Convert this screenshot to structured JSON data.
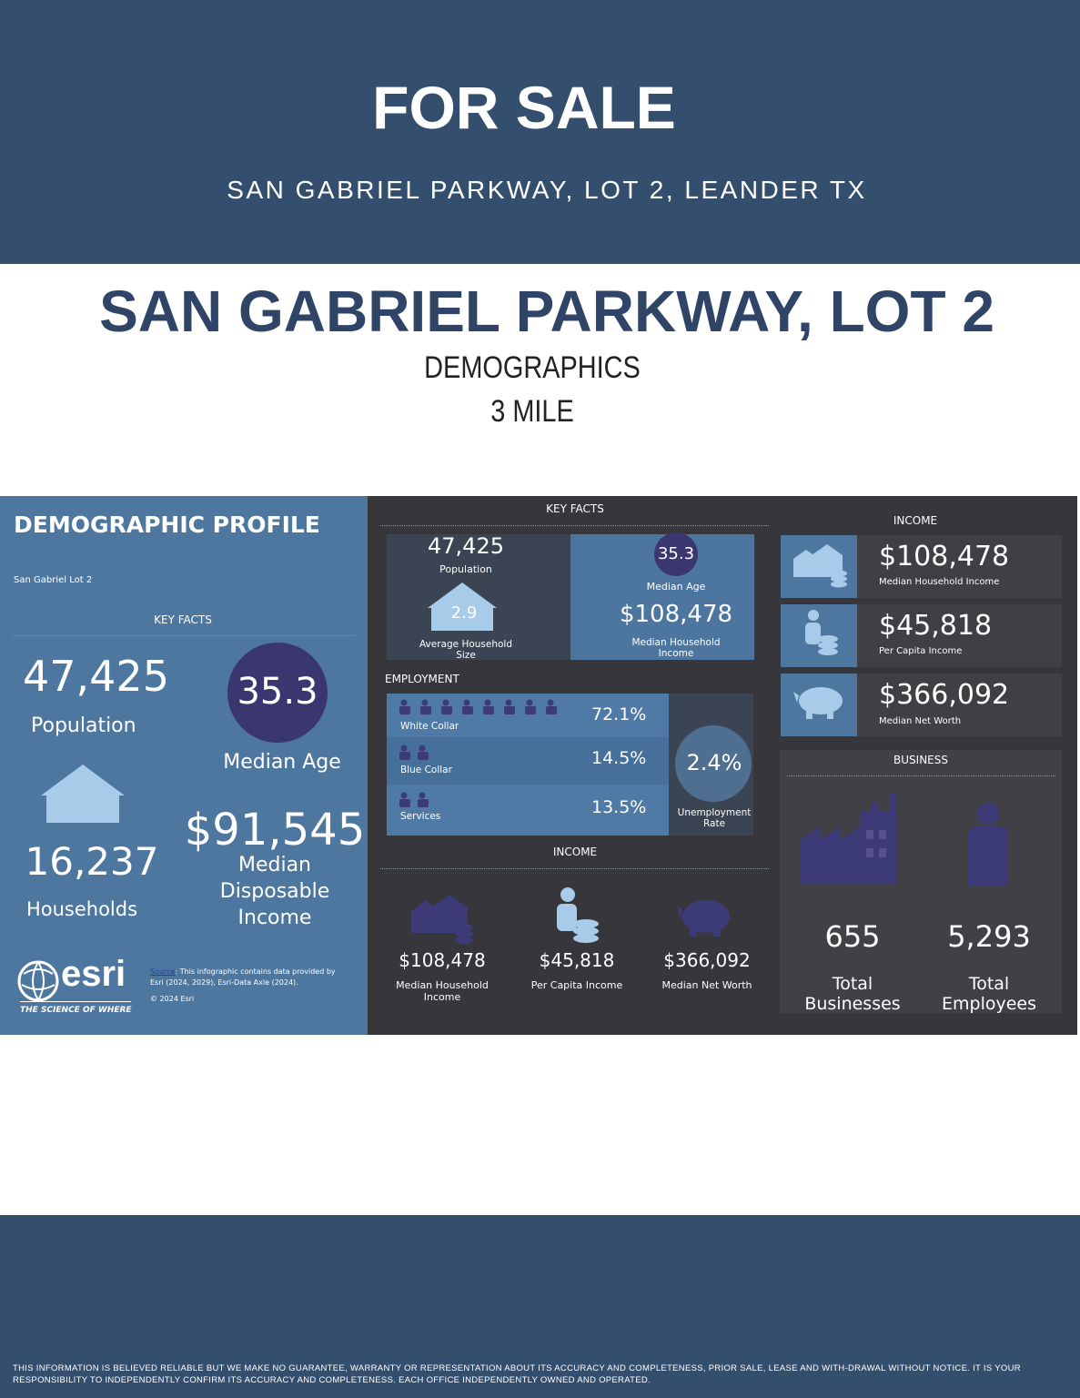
{
  "header": {
    "title": "FOR SALE",
    "address": "SAN GABRIEL PARKWAY, LOT 2, LEANDER TX"
  },
  "heading": {
    "title": "SAN GABRIEL PARKWAY, LOT 2",
    "subtitle": "DEMOGRAPHICS",
    "radius": "3 MILE"
  },
  "profile": {
    "title": "DEMOGRAPHIC PROFILE",
    "location": "San Gabriel Lot 2",
    "section": "KEY FACTS",
    "population": {
      "value": "47,425",
      "label": "Population"
    },
    "median_age": {
      "value": "35.3",
      "label": "Median Age"
    },
    "households": {
      "value": "16,237",
      "label": "Households"
    },
    "disposable_income": {
      "value": "$91,545",
      "label": "Median Disposable Income"
    },
    "logo": "esri",
    "tagline": "THE SCIENCE OF WHERE",
    "source_link": "Source",
    "source": ": This infographic contains data provided by Esri (2024, 2029), Esri-Data Axle (2024).",
    "copyright": "© 2024 Esri"
  },
  "key_facts": {
    "title": "KEY FACTS",
    "population": {
      "value": "47,425",
      "label": "Population"
    },
    "household_size": {
      "value": "2.9",
      "label": "Average Household Size"
    },
    "median_age": {
      "value": "35.3",
      "label": "Median Age"
    },
    "household_income": {
      "value": "$108,478",
      "label": "Median Household Income"
    }
  },
  "employment": {
    "title": "EMPLOYMENT",
    "rows": [
      {
        "label": "White Collar",
        "value": "72.1%"
      },
      {
        "label": "Blue Collar",
        "value": "14.5%"
      },
      {
        "label": "Services",
        "value": "13.5%"
      }
    ],
    "unemployment": {
      "value": "2.4%",
      "label": "Unemployment Rate"
    }
  },
  "income_middle": {
    "title": "INCOME",
    "items": [
      {
        "value": "$108,478",
        "label": "Median Household Income"
      },
      {
        "value": "$45,818",
        "label": "Per Capita Income"
      },
      {
        "value": "$366,092",
        "label": "Median Net Worth"
      }
    ]
  },
  "income_right": {
    "title": "INCOME",
    "items": [
      {
        "value": "$108,478",
        "label": "Median Household Income"
      },
      {
        "value": "$45,818",
        "label": "Per Capita Income"
      },
      {
        "value": "$366,092",
        "label": "Median Net Worth"
      }
    ]
  },
  "business": {
    "title": "BUSINESS",
    "items": [
      {
        "value": "655",
        "label": "Total Businesses"
      },
      {
        "value": "5,293",
        "label": "Total Employees"
      }
    ]
  },
  "footer": {
    "disclaimer": "THIS INFORMATION IS BELIEVED RELIABLE BUT WE MAKE NO GUARANTEE, WARRANTY OR REPRESENTATION ABOUT ITS ACCURACY AND COMPLETENESS, PRIOR SALE, LEASE AND WITH-DRAWAL WITHOUT NOTICE. IT IS YOUR RESPONSIBILITY TO INDEPENDENTLY CONFIRM ITS ACCURACY AND COMPLETENESS.  EACH OFFICE INDEPENDENTLY OWNED AND OPERATED."
  }
}
